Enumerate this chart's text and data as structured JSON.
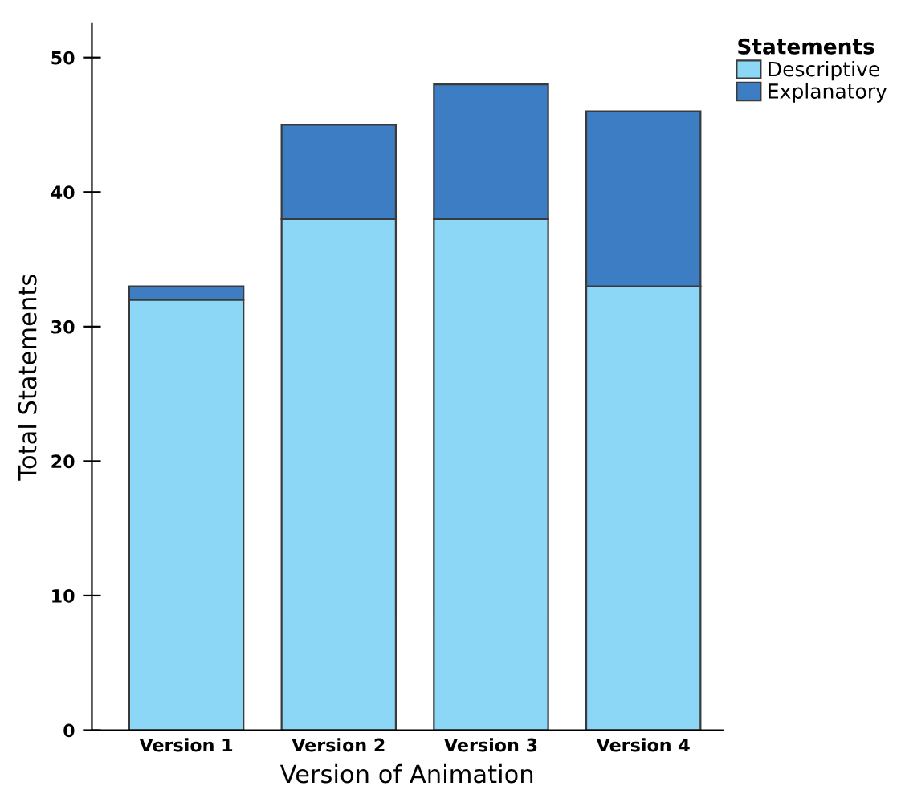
{
  "chart_data": {
    "type": "bar",
    "stacked": true,
    "xlabel": "Version of Animation",
    "ylabel": "Total Statements",
    "legend_title": "Statements",
    "legend": "top right",
    "categories": [
      "Version 1",
      "Version 2",
      "Version 3",
      "Version 4"
    ],
    "series": [
      {
        "name": "Descriptive",
        "color": "#8dd7f6",
        "values": [
          32,
          38,
          38,
          33
        ]
      },
      {
        "name": "Explanatory",
        "color": "#3d7dc4",
        "values": [
          1,
          7,
          10,
          13
        ]
      }
    ],
    "ylim": [
      0,
      52.5
    ],
    "yticks": [
      0,
      10,
      20,
      30,
      40,
      50
    ],
    "grid": false
  }
}
